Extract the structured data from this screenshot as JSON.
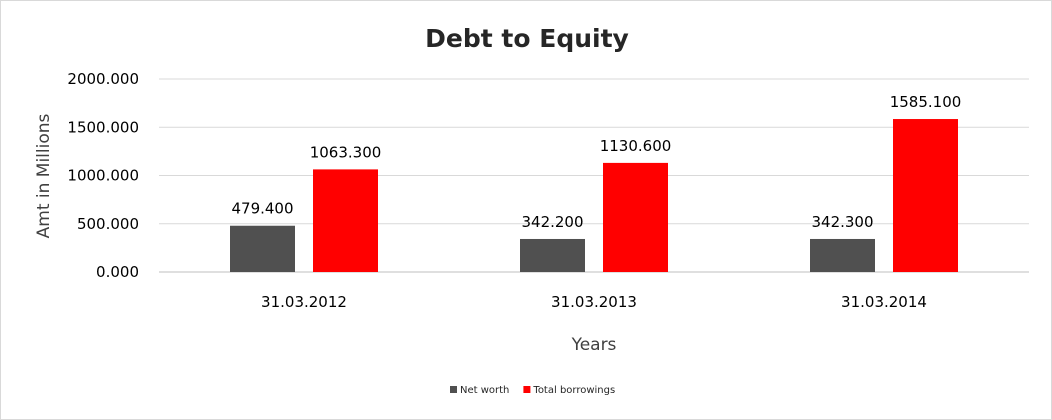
{
  "chart_data": {
    "type": "bar",
    "title": "Debt to Equity",
    "xlabel": "Years",
    "ylabel": "Amt in Millions",
    "categories": [
      "31.03.2012",
      "31.03.2013",
      "31.03.2014"
    ],
    "series": [
      {
        "name": "Net worth",
        "values": [
          479.4,
          342.2,
          342.3
        ],
        "labels": [
          "479.400",
          "342.200",
          "342.300"
        ],
        "color": "#505050"
      },
      {
        "name": "Total borrowings",
        "values": [
          1063.3,
          1130.6,
          1585.1
        ],
        "labels": [
          "1063.300",
          "1130.600",
          "1585.100"
        ],
        "color": "#ff0000"
      }
    ],
    "ylim": [
      0,
      2000
    ],
    "yticks": [
      0,
      500,
      1000,
      1500,
      2000
    ],
    "ytick_labels": [
      "0.000",
      "500.000",
      "1000.000",
      "1500.000",
      "2000.000"
    ],
    "grid": true,
    "legend_position": "bottom"
  }
}
